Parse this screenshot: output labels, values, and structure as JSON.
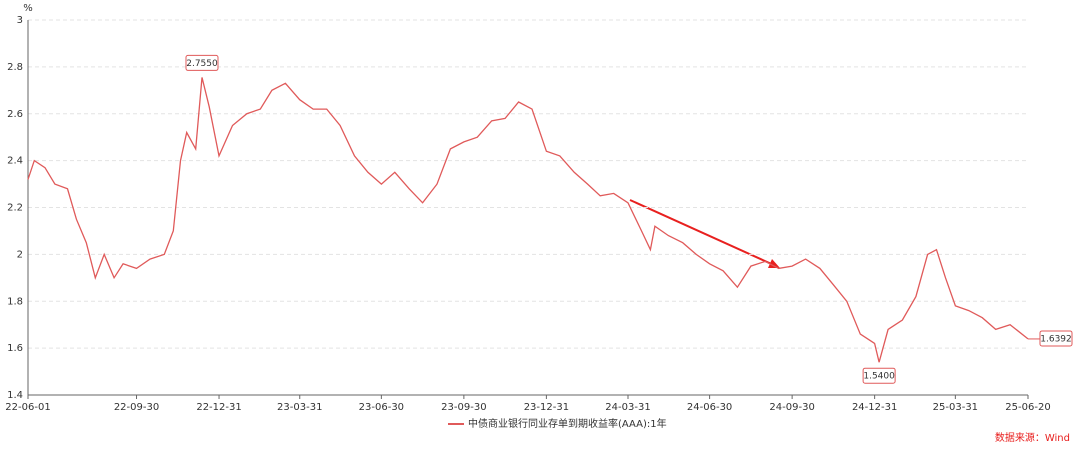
{
  "chart_data": {
    "type": "line",
    "y_unit": "%",
    "source": "数据来源：Wind",
    "x": [
      "22-06-01",
      "22-06-08",
      "22-06-20",
      "22-07-01",
      "22-07-15",
      "22-07-25",
      "22-08-05",
      "22-08-15",
      "22-08-25",
      "22-09-05",
      "22-09-15",
      "22-09-30",
      "22-10-15",
      "22-10-31",
      "22-11-10",
      "22-11-18",
      "22-11-25",
      "22-12-05",
      "22-12-12",
      "22-12-20",
      "22-12-31",
      "23-01-15",
      "23-01-31",
      "23-02-15",
      "23-02-28",
      "23-03-15",
      "23-03-31",
      "23-04-15",
      "23-04-30",
      "23-05-15",
      "23-05-31",
      "23-06-15",
      "23-06-30",
      "23-07-15",
      "23-07-31",
      "23-08-15",
      "23-08-31",
      "23-09-15",
      "23-09-30",
      "23-10-15",
      "23-10-31",
      "23-11-15",
      "23-11-30",
      "23-12-15",
      "23-12-31",
      "24-01-15",
      "24-01-31",
      "24-02-15",
      "24-02-29",
      "24-03-15",
      "24-03-31",
      "24-04-15",
      "24-04-25",
      "24-04-30",
      "24-05-15",
      "24-05-31",
      "24-06-15",
      "24-06-30",
      "24-07-15",
      "24-07-31",
      "24-08-15",
      "24-08-31",
      "24-09-15",
      "24-09-30",
      "24-10-15",
      "24-10-31",
      "24-11-15",
      "24-11-30",
      "24-12-15",
      "24-12-31",
      "25-01-05",
      "25-01-15",
      "25-01-31",
      "25-02-15",
      "25-02-28",
      "25-03-10",
      "25-03-20",
      "25-03-31",
      "25-04-15",
      "25-04-30",
      "25-05-15",
      "25-05-31",
      "25-06-20"
    ],
    "series": [
      {
        "name": "中债商业银行同业存单到期收益率(AAA):1年",
        "color": "#e05a5a",
        "values": [
          2.32,
          2.4,
          2.37,
          2.3,
          2.28,
          2.15,
          2.05,
          1.9,
          2.0,
          1.9,
          1.96,
          1.94,
          1.98,
          2.0,
          2.1,
          2.4,
          2.52,
          2.45,
          2.755,
          2.63,
          2.42,
          2.55,
          2.6,
          2.62,
          2.7,
          2.73,
          2.66,
          2.62,
          2.62,
          2.55,
          2.42,
          2.35,
          2.3,
          2.35,
          2.28,
          2.22,
          2.3,
          2.45,
          2.48,
          2.5,
          2.57,
          2.58,
          2.65,
          2.62,
          2.44,
          2.42,
          2.35,
          2.3,
          2.25,
          2.26,
          2.22,
          2.1,
          2.02,
          2.12,
          2.08,
          2.05,
          2.0,
          1.96,
          1.93,
          1.86,
          1.95,
          1.97,
          1.94,
          1.95,
          1.98,
          1.94,
          1.87,
          1.8,
          1.66,
          1.62,
          1.54,
          1.68,
          1.72,
          1.82,
          2.0,
          2.02,
          1.9,
          1.78,
          1.76,
          1.73,
          1.68,
          1.7,
          1.6392
        ],
        "value_labels": [
          null,
          null,
          null,
          null,
          null,
          null,
          null,
          null,
          null,
          null,
          null,
          null,
          null,
          null,
          null,
          null,
          null,
          null,
          "2.7550",
          null,
          null,
          null,
          null,
          null,
          null,
          null,
          null,
          null,
          null,
          null,
          null,
          null,
          null,
          null,
          null,
          null,
          null,
          null,
          null,
          null,
          null,
          null,
          null,
          null,
          null,
          null,
          null,
          null,
          null,
          null,
          null,
          null,
          null,
          null,
          null,
          null,
          null,
          null,
          null,
          null,
          null,
          null,
          null,
          null,
          null,
          null,
          null,
          null,
          null,
          null,
          "1.5400",
          null,
          null,
          null,
          null,
          null,
          null,
          null,
          null,
          null,
          null,
          null,
          "1.6392"
        ]
      }
    ],
    "xlim": [
      "22-06-01",
      "25-06-20"
    ],
    "xticks": [
      "22-06-01",
      "22-09-30",
      "22-12-31",
      "23-03-31",
      "23-06-30",
      "23-09-30",
      "23-12-31",
      "24-03-31",
      "24-06-30",
      "24-09-30",
      "24-12-31",
      "25-03-31",
      "25-06-20"
    ],
    "ylim": [
      1.4,
      3
    ],
    "yticks": [
      1.4,
      1.6,
      1.8,
      2,
      2.2,
      2.4,
      2.6,
      2.8,
      3
    ],
    "grid": true
  }
}
